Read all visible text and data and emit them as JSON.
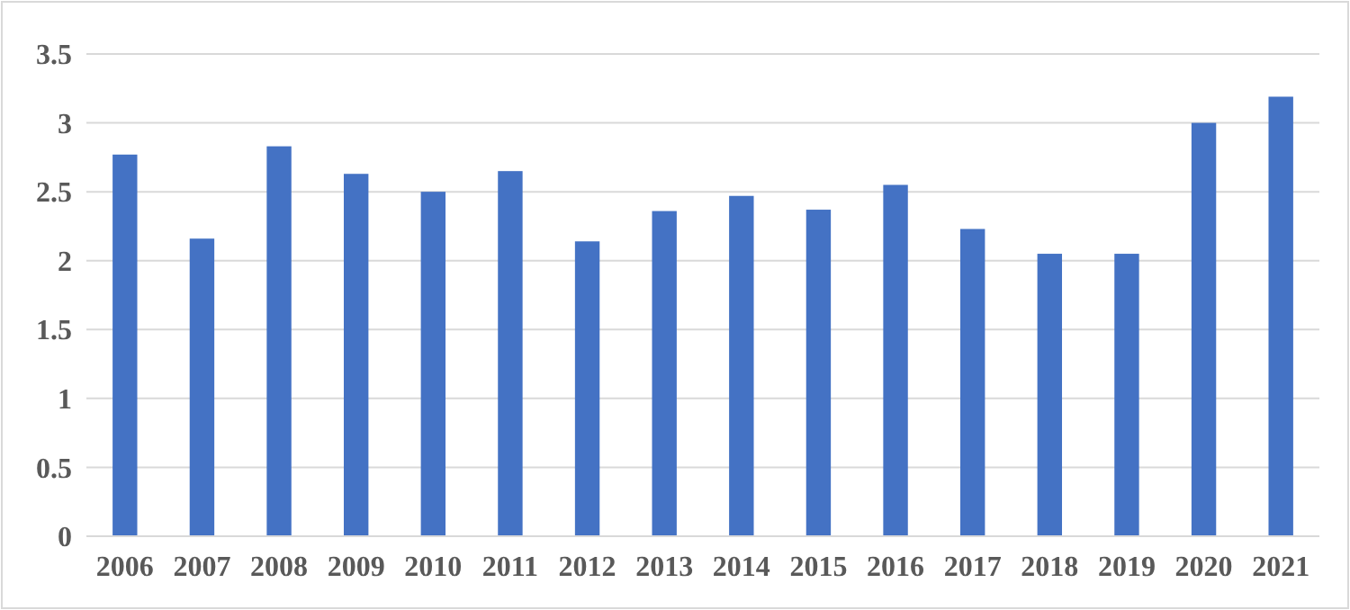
{
  "chart_data": {
    "type": "bar",
    "categories": [
      "2006",
      "2007",
      "2008",
      "2009",
      "2010",
      "2011",
      "2012",
      "2013",
      "2014",
      "2015",
      "2016",
      "2017",
      "2018",
      "2019",
      "2020",
      "2021"
    ],
    "values": [
      2.77,
      2.16,
      2.83,
      2.63,
      2.5,
      2.65,
      2.14,
      2.36,
      2.47,
      2.37,
      2.55,
      2.23,
      2.05,
      2.05,
      3.0,
      3.19
    ],
    "color": "#4472c4",
    "ylim": [
      0,
      3.5
    ],
    "yticks": [
      0,
      0.5,
      1,
      1.5,
      2,
      2.5,
      3,
      3.5
    ],
    "grid": "y"
  }
}
